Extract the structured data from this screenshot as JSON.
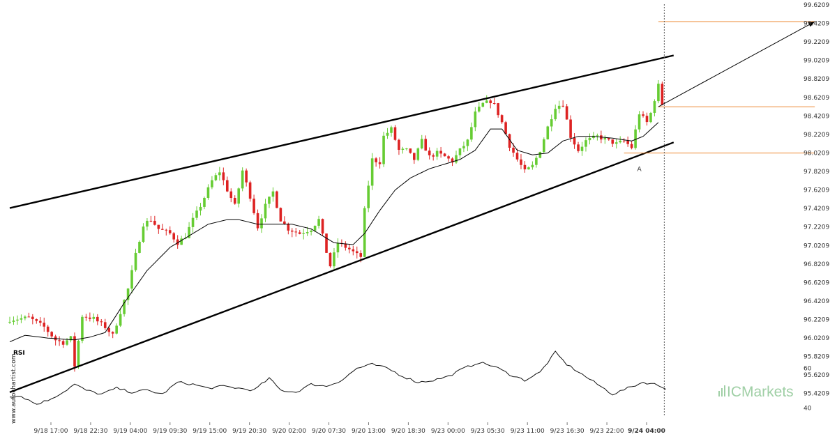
{
  "watermark": "www.autochartist.com",
  "brand": {
    "logo_prefix": "IC",
    "logo_suffix": "Markets",
    "color": "#8fc796"
  },
  "colors": {
    "bull": "#66cc33",
    "bear": "#dd2222",
    "trendline": "#000000",
    "level": "#ee8833",
    "ma": "#000000"
  },
  "chart_data": {
    "type": "candlestick",
    "ylim": [
      95.3209,
      99.6209
    ],
    "y_ticks": [
      "99.6209",
      "99.4209",
      "99.2209",
      "99.0209",
      "98.8209",
      "98.6209",
      "98.4209",
      "98.2209",
      "98.0209",
      "97.8209",
      "97.6209",
      "97.4209",
      "97.2209",
      "97.0209",
      "96.8209",
      "96.6209",
      "96.4209",
      "96.2209",
      "96.0209",
      "95.8209",
      "95.6209",
      "95.4209"
    ],
    "x_ticks": [
      "9/18 17:00",
      "9/18 22:30",
      "9/19 04:00",
      "9/19 09:30",
      "9/19 15:00",
      "9/19 20:30",
      "9/20 02:00",
      "9/20 07:30",
      "9/20 13:00",
      "9/20 18:30",
      "9/23 00:00",
      "9/23 05:30",
      "9/23 11:00",
      "9/23 16:30",
      "9/23 22:00",
      "9/24 04:00"
    ],
    "anchors": [
      [
        0,
        96.22
      ],
      [
        5,
        96.24
      ],
      [
        9,
        96.14
      ],
      [
        12,
        96.0
      ],
      [
        14,
        95.97
      ],
      [
        16,
        96.02
      ],
      [
        17,
        95.72
      ],
      [
        19,
        96.26
      ],
      [
        22,
        96.23
      ],
      [
        25,
        96.14
      ],
      [
        27,
        96.05
      ],
      [
        29,
        96.3
      ],
      [
        31,
        96.55
      ],
      [
        33,
        96.92
      ],
      [
        35,
        97.25
      ],
      [
        37,
        97.3
      ],
      [
        39,
        97.2
      ],
      [
        42,
        97.15
      ],
      [
        44,
        97.05
      ],
      [
        46,
        97.12
      ],
      [
        48,
        97.3
      ],
      [
        50,
        97.45
      ],
      [
        53,
        97.72
      ],
      [
        55,
        97.82
      ],
      [
        57,
        97.62
      ],
      [
        59,
        97.45
      ],
      [
        61,
        97.83
      ],
      [
        63,
        97.55
      ],
      [
        65,
        97.22
      ],
      [
        67,
        97.45
      ],
      [
        69,
        97.6
      ],
      [
        71,
        97.3
      ],
      [
        73,
        97.2
      ],
      [
        76,
        97.15
      ],
      [
        79,
        97.2
      ],
      [
        81,
        97.3
      ],
      [
        83,
        96.95
      ],
      [
        84,
        96.8
      ],
      [
        86,
        97.05
      ],
      [
        89,
        96.98
      ],
      [
        91,
        96.92
      ],
      [
        92,
        96.9
      ],
      [
        93,
        97.4
      ],
      [
        95,
        97.95
      ],
      [
        97,
        97.92
      ],
      [
        98,
        98.2
      ],
      [
        100,
        98.28
      ],
      [
        102,
        98.05
      ],
      [
        104,
        98.05
      ],
      [
        106,
        97.95
      ],
      [
        108,
        98.15
      ],
      [
        110,
        97.98
      ],
      [
        112,
        98.02
      ],
      [
        114,
        97.98
      ],
      [
        116,
        97.93
      ],
      [
        118,
        98.05
      ],
      [
        120,
        98.15
      ],
      [
        122,
        98.45
      ],
      [
        124,
        98.55
      ],
      [
        126,
        98.58
      ],
      [
        127,
        98.54
      ],
      [
        129,
        98.35
      ],
      [
        131,
        98.1
      ],
      [
        133,
        97.95
      ],
      [
        135,
        97.82
      ],
      [
        137,
        97.88
      ],
      [
        139,
        98.05
      ],
      [
        141,
        98.3
      ],
      [
        143,
        98.52
      ],
      [
        145,
        98.55
      ],
      [
        147,
        98.2
      ],
      [
        149,
        98.05
      ],
      [
        151,
        98.15
      ],
      [
        154,
        98.2
      ],
      [
        157,
        98.15
      ],
      [
        159,
        98.12
      ],
      [
        161,
        98.15
      ],
      [
        163,
        98.08
      ],
      [
        165,
        98.45
      ],
      [
        167,
        98.35
      ],
      [
        168,
        98.45
      ],
      [
        170,
        98.75
      ],
      [
        171,
        98.55
      ]
    ],
    "ma_anchors": [
      [
        0,
        95.98
      ],
      [
        4,
        96.05
      ],
      [
        10,
        96.02
      ],
      [
        17,
        96.0
      ],
      [
        21,
        96.03
      ],
      [
        25,
        96.08
      ],
      [
        30,
        96.4
      ],
      [
        36,
        96.75
      ],
      [
        42,
        97.0
      ],
      [
        48,
        97.15
      ],
      [
        52,
        97.25
      ],
      [
        57,
        97.3
      ],
      [
        60,
        97.3
      ],
      [
        65,
        97.25
      ],
      [
        70,
        97.25
      ],
      [
        74,
        97.25
      ],
      [
        79,
        97.2
      ],
      [
        85,
        97.05
      ],
      [
        90,
        97.03
      ],
      [
        93,
        97.15
      ],
      [
        97,
        97.4
      ],
      [
        101,
        97.62
      ],
      [
        105,
        97.75
      ],
      [
        110,
        97.85
      ],
      [
        114,
        97.9
      ],
      [
        118,
        97.95
      ],
      [
        122,
        98.05
      ],
      [
        126,
        98.28
      ],
      [
        129,
        98.28
      ],
      [
        133,
        98.05
      ],
      [
        137,
        98.0
      ],
      [
        141,
        98.02
      ],
      [
        145,
        98.15
      ],
      [
        149,
        98.2
      ],
      [
        153,
        98.2
      ],
      [
        158,
        98.18
      ],
      [
        163,
        98.15
      ],
      [
        166,
        98.2
      ],
      [
        170,
        98.35
      ]
    ],
    "wedge": {
      "upper": [
        {
          "x": 0,
          "y": 97.425
        },
        {
          "x": 174,
          "y": 99.075
        }
      ],
      "lower": [
        {
          "x": 0,
          "y": 95.435
        },
        {
          "x": 174,
          "y": 98.135
        }
      ]
    },
    "breakout": {
      "from": {
        "x": 170,
        "y": 98.52
      },
      "to": {
        "x": 211,
        "y": 99.44
      }
    },
    "levels": [
      {
        "y": 99.44,
        "x0": 170,
        "x1": 211
      },
      {
        "y": 98.52,
        "x0": 170,
        "x1": 211
      },
      {
        "y": 98.02,
        "x0": 161,
        "x1": 211
      }
    ],
    "point_label": {
      "text": "A",
      "x": 165,
      "y": 97.93
    },
    "current_bar": 171,
    "rsi": {
      "title": "RSI",
      "ylim": [
        35,
        70
      ],
      "ticks": [
        "60",
        "40"
      ],
      "anchors": [
        [
          0,
          46
        ],
        [
          3,
          46
        ],
        [
          7,
          42
        ],
        [
          10,
          44
        ],
        [
          14,
          48
        ],
        [
          17,
          52
        ],
        [
          20,
          49
        ],
        [
          24,
          47
        ],
        [
          28,
          50
        ],
        [
          32,
          48
        ],
        [
          36,
          49
        ],
        [
          40,
          47
        ],
        [
          44,
          53
        ],
        [
          48,
          52
        ],
        [
          52,
          50
        ],
        [
          56,
          51
        ],
        [
          60,
          50
        ],
        [
          64,
          49
        ],
        [
          68,
          55
        ],
        [
          71,
          49
        ],
        [
          75,
          48
        ],
        [
          79,
          52
        ],
        [
          83,
          51
        ],
        [
          87,
          54
        ],
        [
          91,
          60
        ],
        [
          95,
          62
        ],
        [
          99,
          60
        ],
        [
          103,
          56
        ],
        [
          107,
          53
        ],
        [
          111,
          54
        ],
        [
          115,
          56
        ],
        [
          119,
          60
        ],
        [
          123,
          63
        ],
        [
          127,
          61
        ],
        [
          131,
          57
        ],
        [
          135,
          54
        ],
        [
          139,
          58
        ],
        [
          143,
          68
        ],
        [
          146,
          62
        ],
        [
          150,
          57
        ],
        [
          154,
          52
        ],
        [
          158,
          47
        ],
        [
          162,
          50
        ],
        [
          166,
          53
        ],
        [
          169,
          52
        ],
        [
          172,
          50
        ]
      ]
    }
  }
}
